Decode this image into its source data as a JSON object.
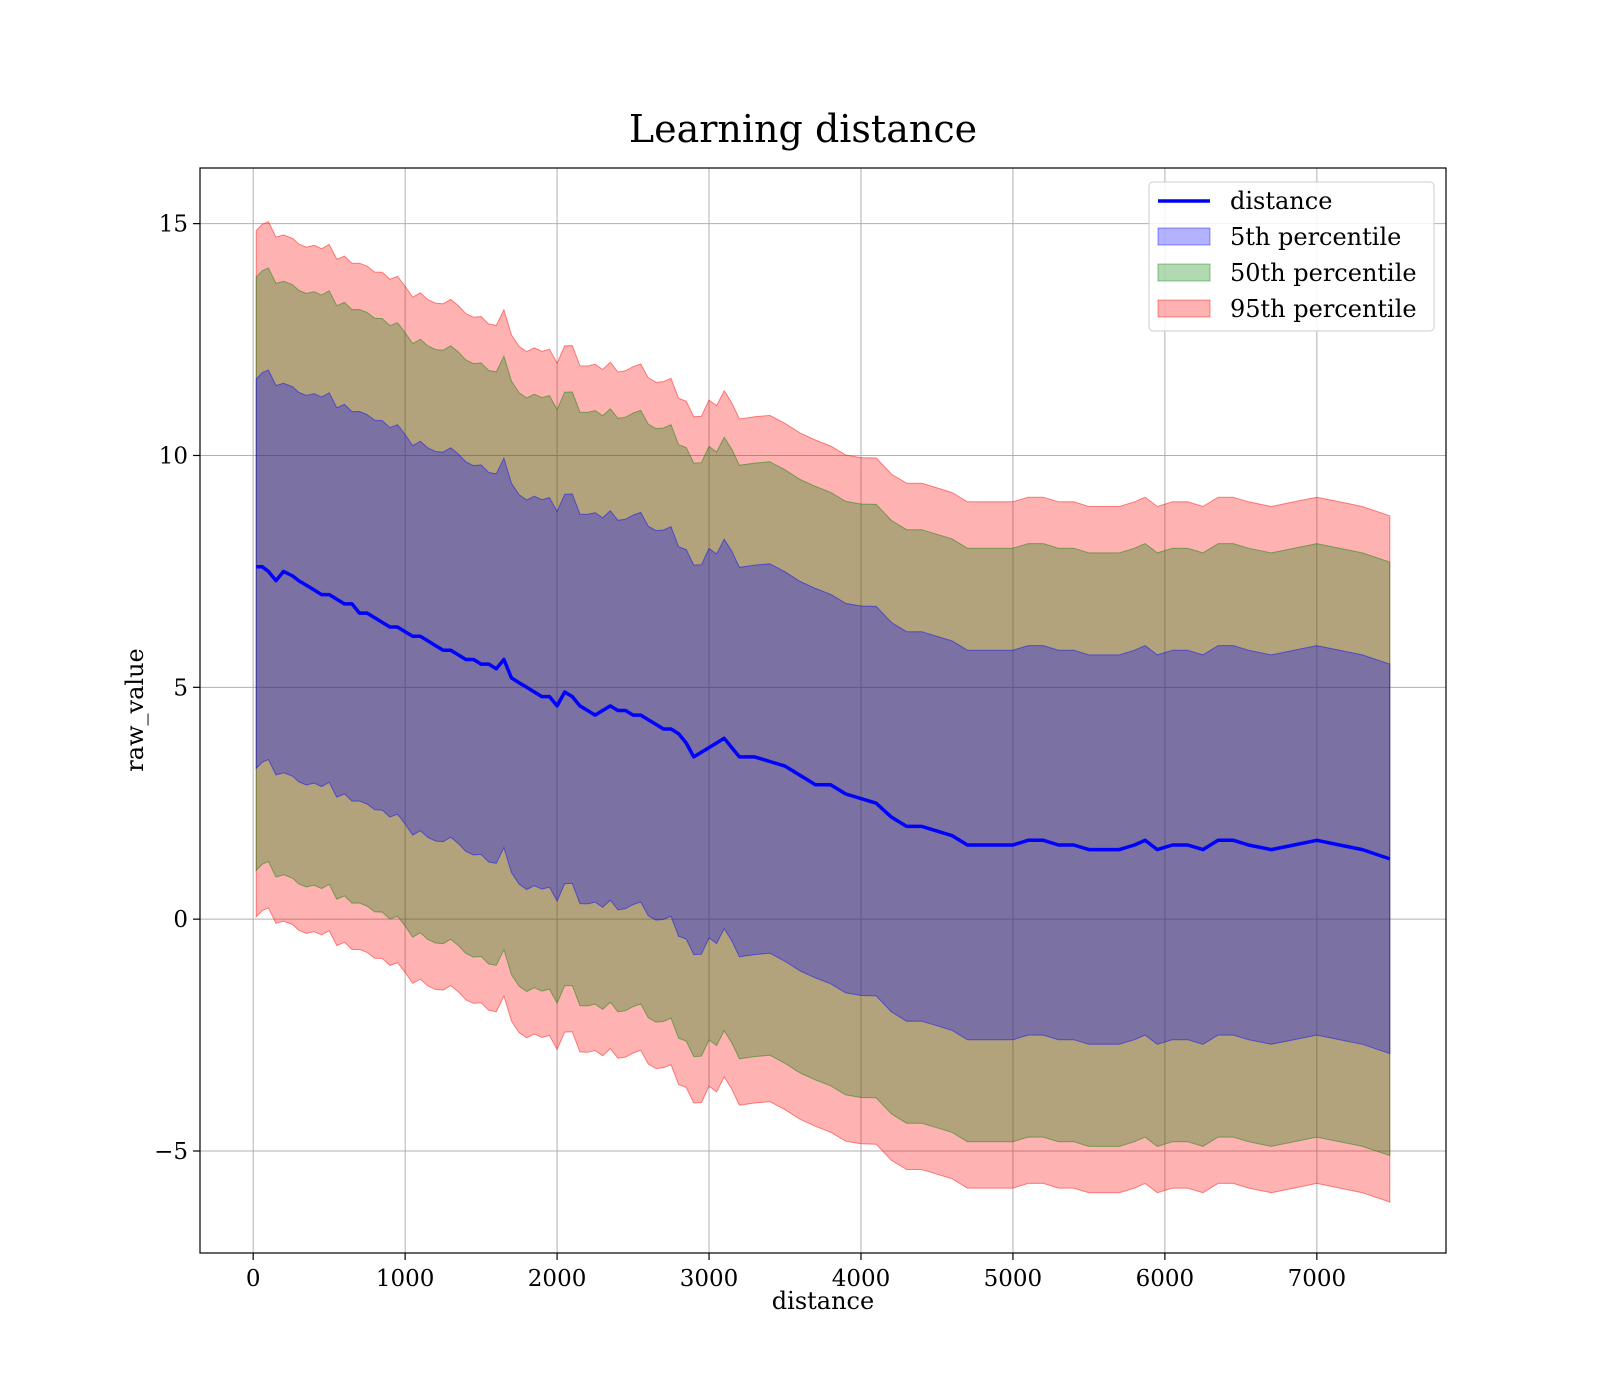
{
  "chart_data": {
    "type": "line",
    "title": "Learning distance",
    "xlabel": "distance",
    "ylabel": "raw_value",
    "xlim": [
      -350,
      7850
    ],
    "ylim": [
      -7.2,
      16.2
    ],
    "x_ticks": [
      0,
      1000,
      2000,
      3000,
      4000,
      5000,
      6000,
      7000
    ],
    "y_ticks": [
      -5,
      0,
      5,
      10,
      15
    ],
    "y_tick_labels": [
      "−5",
      "0",
      "5",
      "10",
      "15"
    ],
    "grid": true,
    "legend_position": "top-right",
    "series": [
      {
        "name": "distance",
        "kind": "line",
        "color": "#0000ff",
        "x": [
          20,
          60,
          100,
          150,
          200,
          260,
          300,
          350,
          400,
          450,
          500,
          550,
          600,
          650,
          700,
          750,
          800,
          850,
          900,
          950,
          1000,
          1050,
          1100,
          1150,
          1200,
          1250,
          1300,
          1350,
          1400,
          1450,
          1500,
          1550,
          1600,
          1650,
          1700,
          1750,
          1800,
          1850,
          1900,
          1950,
          2000,
          2050,
          2100,
          2150,
          2200,
          2250,
          2300,
          2350,
          2400,
          2450,
          2500,
          2550,
          2600,
          2650,
          2700,
          2750,
          2800,
          2850,
          2900,
          2950,
          3000,
          3050,
          3100,
          3150,
          3200,
          3300,
          3400,
          3500,
          3600,
          3700,
          3800,
          3900,
          4000,
          4100,
          4200,
          4300,
          4400,
          4500,
          4600,
          4700,
          4800,
          4900,
          5000,
          5100,
          5200,
          5300,
          5400,
          5500,
          5600,
          5700,
          5800,
          5870,
          5950,
          6050,
          6150,
          6250,
          6350,
          6450,
          6550,
          6700,
          6850,
          7000,
          7150,
          7300,
          7480
        ],
        "values": [
          7.6,
          7.6,
          7.5,
          7.3,
          7.5,
          7.4,
          7.3,
          7.2,
          7.1,
          7.0,
          7.0,
          6.9,
          6.8,
          6.8,
          6.6,
          6.6,
          6.5,
          6.4,
          6.3,
          6.3,
          6.2,
          6.1,
          6.1,
          6.0,
          5.9,
          5.8,
          5.8,
          5.7,
          5.6,
          5.6,
          5.5,
          5.5,
          5.4,
          5.6,
          5.2,
          5.1,
          5.0,
          4.9,
          4.8,
          4.8,
          4.6,
          4.9,
          4.8,
          4.6,
          4.5,
          4.4,
          4.5,
          4.6,
          4.5,
          4.5,
          4.4,
          4.4,
          4.3,
          4.2,
          4.1,
          4.1,
          4.0,
          3.8,
          3.5,
          3.6,
          3.7,
          3.8,
          3.9,
          3.7,
          3.5,
          3.5,
          3.4,
          3.3,
          3.1,
          2.9,
          2.9,
          2.7,
          2.6,
          2.5,
          2.2,
          2.0,
          2.0,
          1.9,
          1.8,
          1.6,
          1.6,
          1.6,
          1.6,
          1.7,
          1.7,
          1.6,
          1.6,
          1.5,
          1.5,
          1.5,
          1.6,
          1.7,
          1.5,
          1.6,
          1.6,
          1.5,
          1.7,
          1.7,
          1.6,
          1.5,
          1.6,
          1.7,
          1.6,
          1.5,
          1.3
        ]
      },
      {
        "name": "5th percentile",
        "kind": "band",
        "color": "#0000ff",
        "offset": 4.2
      },
      {
        "name": "50th percentile",
        "kind": "band",
        "color": "#008000",
        "offset": 6.4
      },
      {
        "name": "95th percentile",
        "kind": "band",
        "color": "#ff0000",
        "offset": 7.4
      }
    ]
  }
}
